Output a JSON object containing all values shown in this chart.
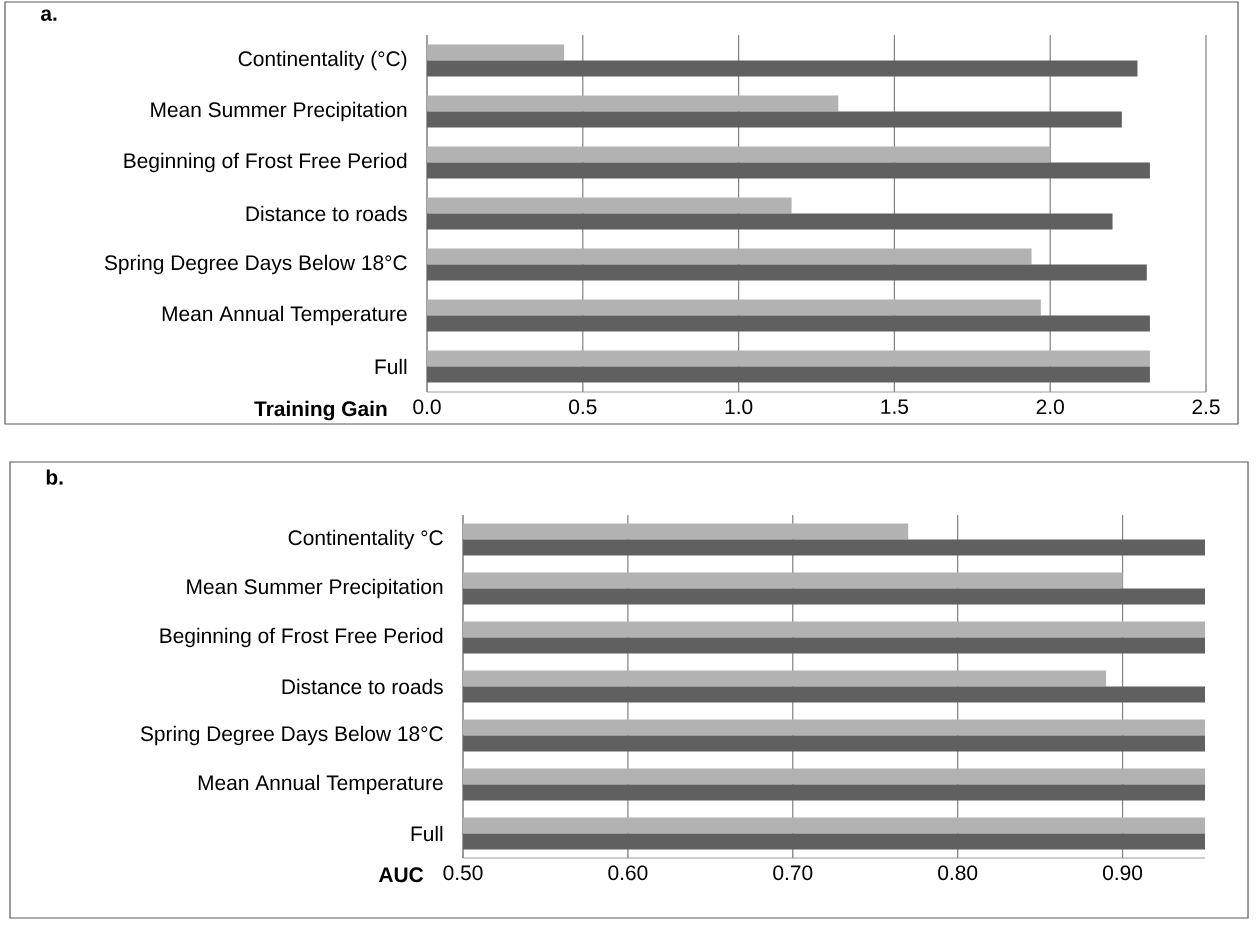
{
  "chart_data": [
    {
      "type": "bar",
      "orientation": "horizontal",
      "title": "a.",
      "xlabel": "Training Gain",
      "categories": [
        "Continentality (°C)",
        "Mean Summer Precipitation",
        "Beginning of Frost Free Period",
        "Distance to roads",
        "Spring Degree Days Below 18°C",
        "Mean Annual Temperature",
        "Full"
      ],
      "series": [
        {
          "color": "#b2b2b2",
          "values": [
            0.44,
            1.32,
            2.0,
            1.17,
            1.94,
            1.97,
            2.32
          ]
        },
        {
          "color": "#606060",
          "values": [
            2.28,
            2.23,
            2.32,
            2.2,
            2.31,
            2.32,
            2.32
          ]
        }
      ],
      "xlim": [
        0,
        2.5
      ],
      "xticks": [
        {
          "value": 0,
          "label": "0.0"
        },
        {
          "value": 0.5,
          "label": "0.5"
        },
        {
          "value": 1,
          "label": "1.0"
        },
        {
          "value": 1.5,
          "label": "1.5"
        },
        {
          "value": 2,
          "label": "2.0"
        },
        {
          "value": 2.5,
          "label": "2.5"
        }
      ],
      "grid": "x"
    },
    {
      "type": "bar",
      "orientation": "horizontal",
      "title": "b.",
      "xlabel": "AUC",
      "categories": [
        "Continentality °C",
        "Mean Summer Precipitation",
        "Beginning of Frost Free Period",
        "Distance to roads",
        "Spring Degree Days Below 18°C",
        "Mean Annual Temperature",
        "Full"
      ],
      "series": [
        {
          "color": "#b2b2b2",
          "values": [
            0.77,
            0.9,
            0.95,
            0.89,
            0.95,
            0.95,
            0.95
          ]
        },
        {
          "color": "#606060",
          "values": [
            0.95,
            0.95,
            0.95,
            0.95,
            0.95,
            0.95,
            0.95
          ]
        }
      ],
      "xlim": [
        0.5,
        0.95
      ],
      "xticks": [
        {
          "value": 0.5,
          "label": "0.50"
        },
        {
          "value": 0.6,
          "label": "0.60"
        },
        {
          "value": 0.7,
          "label": "0.70"
        },
        {
          "value": 0.8,
          "label": "0.80"
        },
        {
          "value": 0.9,
          "label": "0.90"
        }
      ],
      "grid": "x"
    }
  ]
}
